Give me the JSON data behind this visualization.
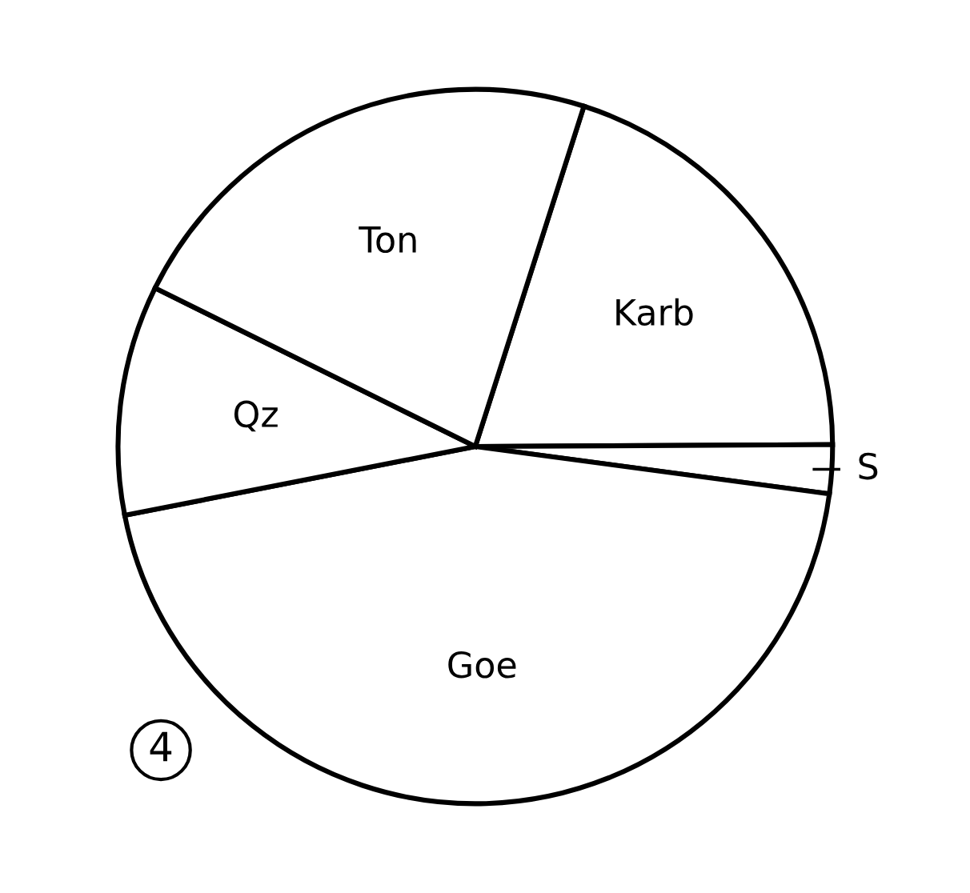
{
  "chart_data": {
    "type": "pie",
    "categories": [
      "Karb",
      "S",
      "Goe",
      "Qz",
      "Ton"
    ],
    "values": [
      20.0,
      2.2,
      44.8,
      10.4,
      22.6
    ],
    "colors": [
      "#ffffff",
      "#ffffff",
      "#ffffff",
      "#ffffff",
      "#ffffff"
    ],
    "annotations": [
      "4"
    ]
  }
}
